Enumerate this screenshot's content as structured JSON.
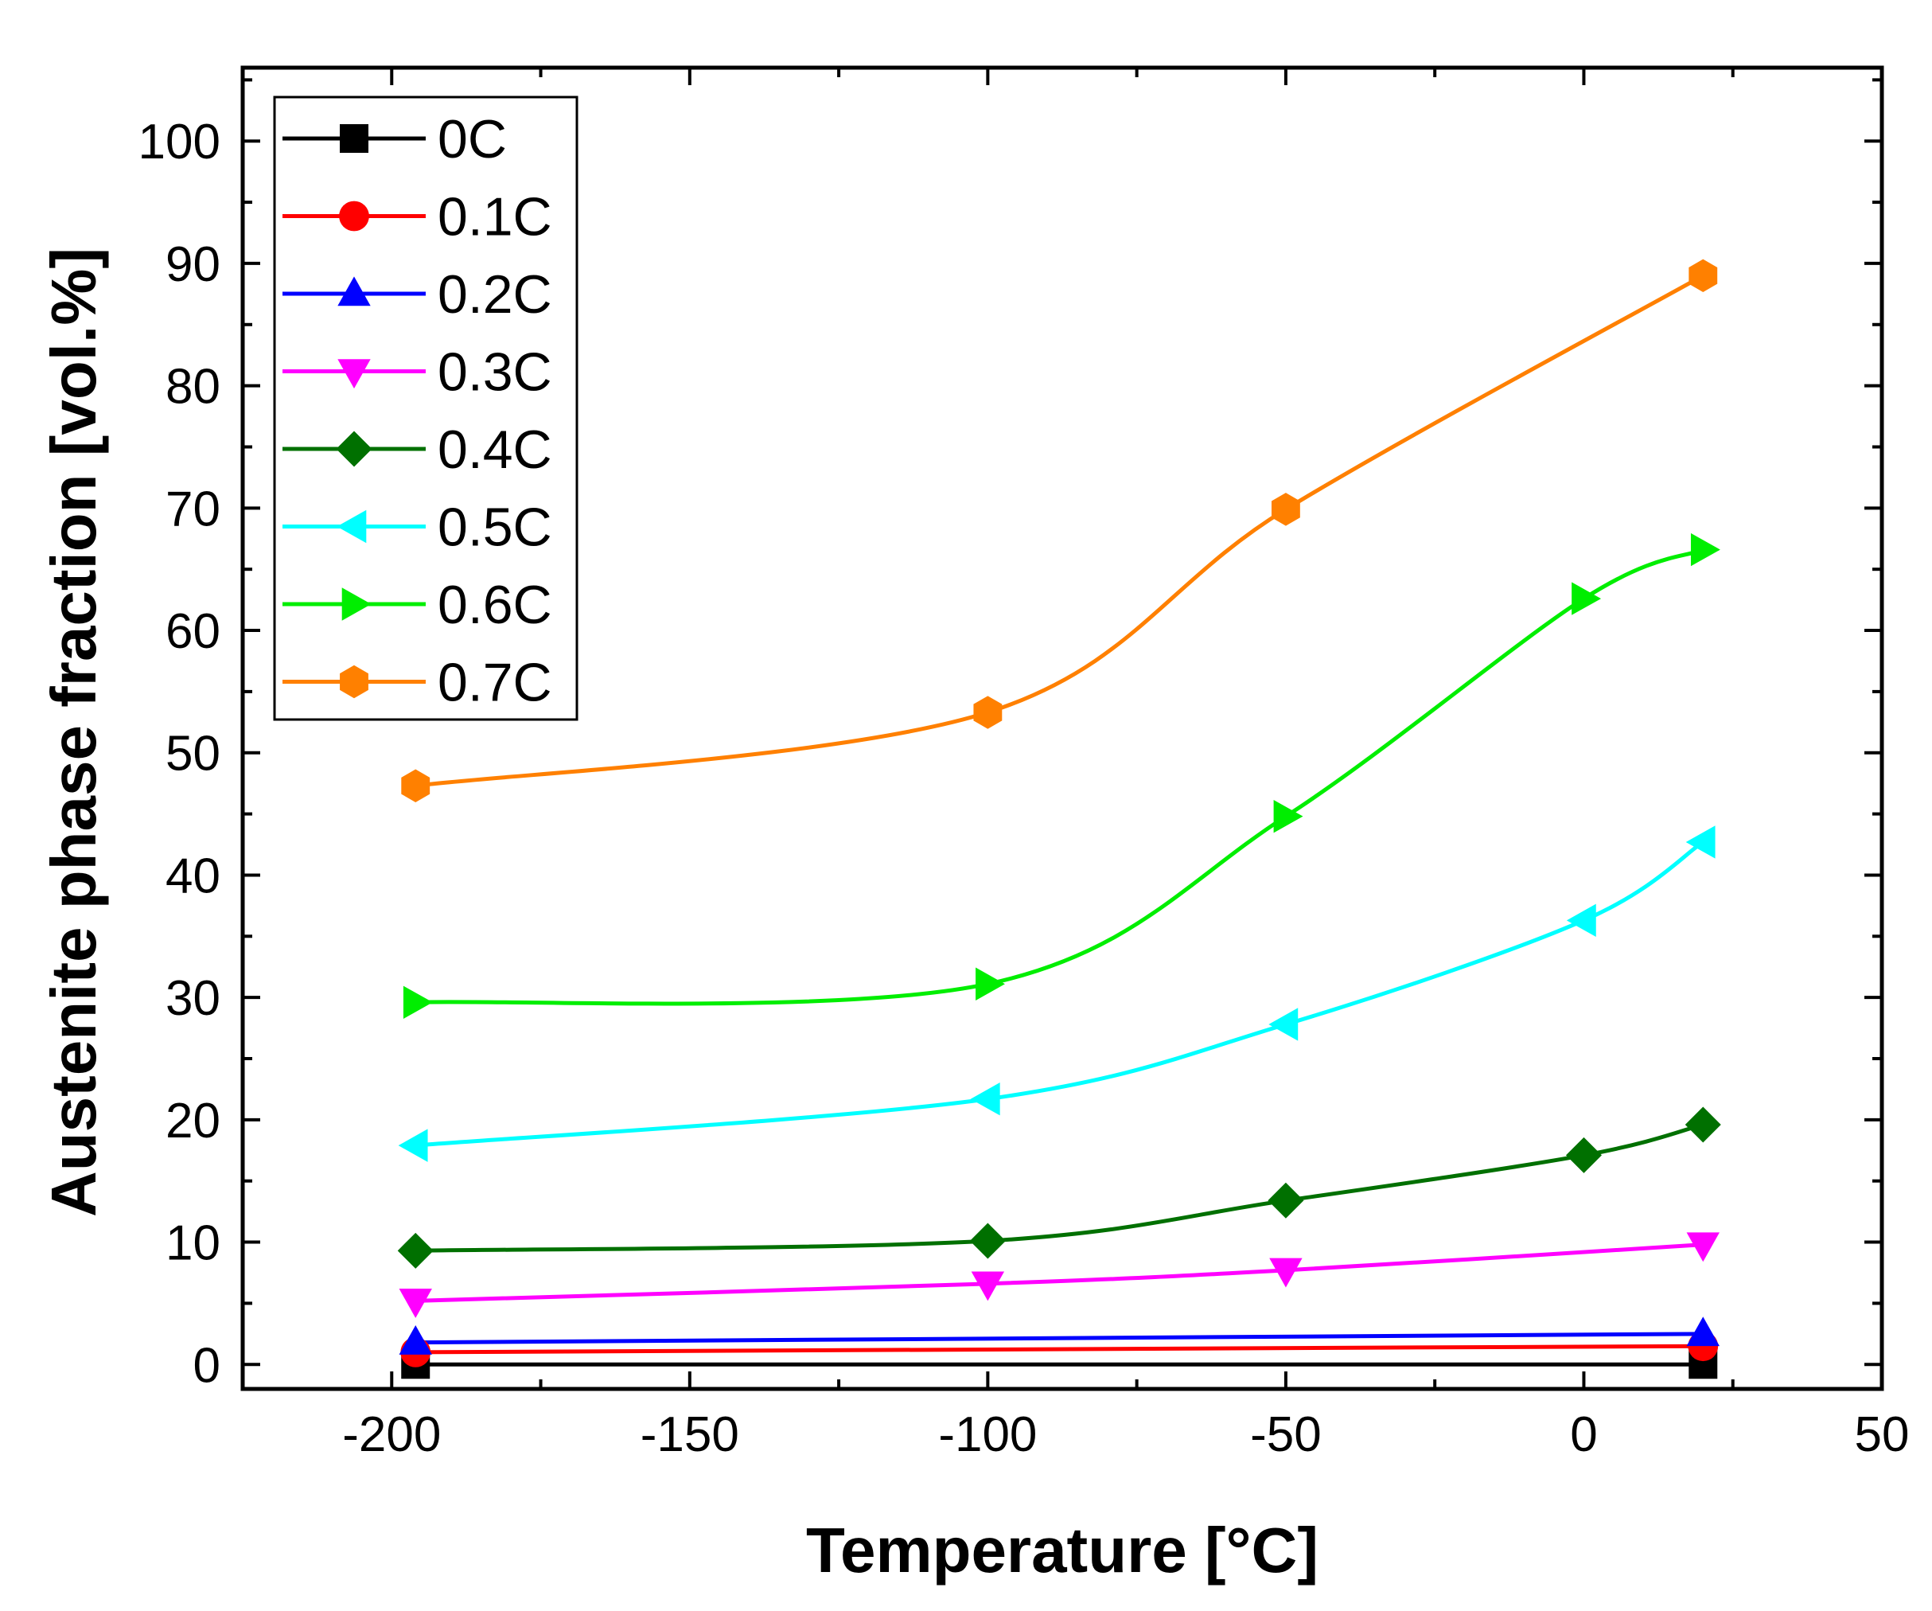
{
  "chart_data": {
    "type": "line",
    "title": "",
    "xlabel": "Temperature [°C]",
    "ylabel": "Austenite phase fraction [vol.%]",
    "xlim": [
      -225,
      50
    ],
    "ylim": [
      -2,
      106
    ],
    "xticks": [
      -200,
      -150,
      -100,
      -50,
      0,
      50
    ],
    "xtick_labels": [
      "-200",
      "-150",
      "-100",
      "-50",
      "0",
      "50"
    ],
    "yticks": [
      0,
      10,
      20,
      30,
      40,
      50,
      60,
      70,
      80,
      90,
      100
    ],
    "ytick_labels": [
      "0",
      "10",
      "20",
      "30",
      "40",
      "50",
      "60",
      "70",
      "80",
      "90",
      "100"
    ],
    "grid": false,
    "legend_position": "top-left",
    "series": [
      {
        "name": "0C",
        "color": "#000000",
        "marker": "square",
        "x": [
          -196,
          20
        ],
        "values": [
          0,
          0
        ]
      },
      {
        "name": "0.1C",
        "color": "#ff0000",
        "marker": "circle",
        "x": [
          -196,
          20
        ],
        "values": [
          1.0,
          1.5
        ]
      },
      {
        "name": "0.2C",
        "color": "#0000ff",
        "marker": "triangle-up",
        "x": [
          -196,
          20
        ],
        "values": [
          1.8,
          2.5
        ]
      },
      {
        "name": "0.3C",
        "color": "#ff00ff",
        "marker": "triangle-down",
        "x": [
          -196,
          -100,
          -50,
          20
        ],
        "values": [
          5.2,
          6.6,
          7.7,
          9.8
        ]
      },
      {
        "name": "0.4C",
        "color": "#007000",
        "marker": "diamond",
        "x": [
          -196,
          -100,
          -50,
          0,
          20
        ],
        "values": [
          9.3,
          10.1,
          13.4,
          17.1,
          19.6
        ]
      },
      {
        "name": "0.5C",
        "color": "#00ffff",
        "marker": "triangle-left",
        "x": [
          -196,
          -100,
          -50,
          0,
          20
        ],
        "values": [
          17.9,
          21.7,
          27.8,
          36.3,
          42.7
        ]
      },
      {
        "name": "0.6C",
        "color": "#00ee00",
        "marker": "triangle-right",
        "x": [
          -196,
          -100,
          -50,
          0,
          20
        ],
        "values": [
          29.6,
          31.1,
          44.8,
          62.6,
          66.6
        ]
      },
      {
        "name": "0.7C",
        "color": "#ff8000",
        "marker": "hexagon",
        "x": [
          -196,
          -100,
          -50,
          20
        ],
        "values": [
          47.3,
          53.3,
          69.9,
          89.0
        ]
      }
    ]
  }
}
